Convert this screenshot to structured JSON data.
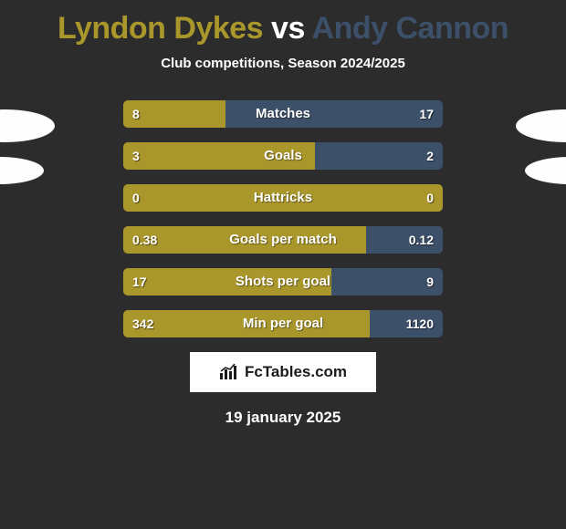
{
  "title": {
    "text1": "Lyndon Dykes",
    "vs": " vs ",
    "text2": "Andy Cannon",
    "color1": "#aa972b",
    "color2": "#3d5069",
    "vs_color": "#ffffff"
  },
  "subtitle": "Club competitions, Season 2024/2025",
  "bars": [
    {
      "label": "Matches",
      "left_val": "8",
      "right_val": "17",
      "left_pct": 32
    },
    {
      "label": "Goals",
      "left_val": "3",
      "right_val": "2",
      "left_pct": 60
    },
    {
      "label": "Hattricks",
      "left_val": "0",
      "right_val": "0",
      "left_pct": 100
    },
    {
      "label": "Goals per match",
      "left_val": "0.38",
      "right_val": "0.12",
      "left_pct": 76
    },
    {
      "label": "Shots per goal",
      "left_val": "17",
      "right_val": "9",
      "left_pct": 65
    },
    {
      "label": "Min per goal",
      "left_val": "342",
      "right_val": "1120",
      "left_pct": 77
    }
  ],
  "colors": {
    "left_bar": "#aa972b",
    "right_bar": "#3d5069",
    "background": "#2c2c2c",
    "text": "#ffffff"
  },
  "logo": "FcTables.com",
  "date": "19 january 2025"
}
